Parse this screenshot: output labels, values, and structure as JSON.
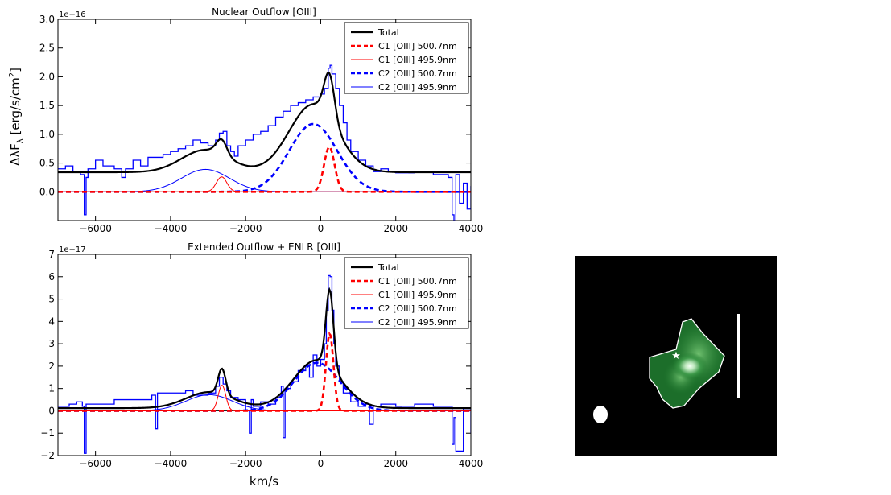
{
  "figure": {
    "ylabel": "ΔλF",
    "ylabel_sub": "λ",
    "ylabel_unit": " [erg/s/cm",
    "ylabel_sup": "2",
    "ylabel_end": "]",
    "xlabel": "km/s"
  },
  "chart_data": [
    {
      "type": "line",
      "title": "Nuclear Outflow [OIII]",
      "xlabel": "",
      "ylabel": "ΔλF_λ [erg/s/cm^2]",
      "scale_label": "1e−16",
      "xlim": [
        -7000,
        4000
      ],
      "ylim": [
        -0.5,
        3.0
      ],
      "xticks": [
        -6000,
        -4000,
        -2000,
        0,
        2000,
        4000
      ],
      "xtick_labels": [
        "−6000",
        "−4000",
        "−2000",
        "0",
        "2000",
        "4000"
      ],
      "yticks": [
        0.0,
        0.5,
        1.0,
        1.5,
        2.0,
        2.5,
        3.0
      ],
      "ytick_labels": [
        "0.0",
        "0.5",
        "1.0",
        "1.5",
        "2.0",
        "2.5",
        "3.0"
      ],
      "legend_position": "top-right",
      "baseline": 0.34,
      "components": [
        {
          "name": "C1 [OIII] 500.7nm",
          "center": 230,
          "amplitude": 0.78,
          "sigma": 140,
          "color": "#ff0000",
          "style": "dashed",
          "width": 2.6
        },
        {
          "name": "C1 [OIII] 495.9nm",
          "center": -2640,
          "amplitude": 0.26,
          "sigma": 140,
          "color": "#ff0000",
          "style": "solid",
          "width": 1
        },
        {
          "name": "C2 [OIII] 500.7nm",
          "center": -200,
          "amplitude": 1.18,
          "sigma": 640,
          "color": "#0000ff",
          "style": "dashed",
          "width": 2.6
        },
        {
          "name": "C2 [OIII] 495.9nm",
          "center": -3070,
          "amplitude": 0.39,
          "sigma": 640,
          "color": "#0000ff",
          "style": "solid",
          "width": 1
        }
      ],
      "total": {
        "name": "Total",
        "color": "#000000",
        "width": 2.2
      },
      "data_spectrum": {
        "color": "#0000ff",
        "x": [
          -7000,
          -6800,
          -6600,
          -6400,
          -6300,
          -6250,
          -6200,
          -6000,
          -5800,
          -5500,
          -5300,
          -5200,
          -5000,
          -4800,
          -4600,
          -4400,
          -4200,
          -4000,
          -3800,
          -3600,
          -3400,
          -3200,
          -3000,
          -2800,
          -2700,
          -2600,
          -2500,
          -2400,
          -2300,
          -2200,
          -2000,
          -1800,
          -1600,
          -1400,
          -1200,
          -1000,
          -800,
          -600,
          -400,
          -200,
          0,
          100,
          200,
          250,
          300,
          400,
          500,
          600,
          700,
          800,
          1000,
          1200,
          1400,
          1600,
          1800,
          2000,
          2500,
          3000,
          3400,
          3500,
          3550,
          3600,
          3700,
          3800,
          3900,
          4000
        ],
        "y": [
          0.4,
          0.45,
          0.35,
          0.3,
          -0.4,
          0.25,
          0.4,
          0.55,
          0.45,
          0.4,
          0.25,
          0.4,
          0.55,
          0.45,
          0.6,
          0.6,
          0.65,
          0.7,
          0.75,
          0.8,
          0.9,
          0.85,
          0.8,
          0.9,
          1.02,
          1.05,
          0.8,
          0.7,
          0.62,
          0.8,
          0.9,
          1.0,
          1.05,
          1.15,
          1.3,
          1.4,
          1.5,
          1.55,
          1.6,
          1.65,
          1.7,
          1.8,
          2.15,
          2.2,
          2.05,
          1.8,
          1.5,
          1.2,
          0.9,
          0.7,
          0.55,
          0.45,
          0.35,
          0.4,
          0.35,
          0.33,
          0.35,
          0.3,
          0.25,
          -0.4,
          -0.6,
          0.3,
          -0.2,
          0.15,
          -0.3,
          0.1
        ]
      }
    },
    {
      "type": "line",
      "title": "Extended Outflow + ENLR [OIII]",
      "xlabel": "km/s",
      "ylabel": "ΔλF_λ [erg/s/cm^2]",
      "scale_label": "1e−17",
      "xlim": [
        -7000,
        4000
      ],
      "ylim": [
        -2,
        7
      ],
      "xticks": [
        -6000,
        -4000,
        -2000,
        0,
        2000,
        4000
      ],
      "xtick_labels": [
        "−6000",
        "−4000",
        "−2000",
        "0",
        "2000",
        "4000"
      ],
      "yticks": [
        -2,
        -1,
        0,
        1,
        2,
        3,
        4,
        5,
        6,
        7
      ],
      "ytick_labels": [
        "−2",
        "−1",
        "0",
        "1",
        "2",
        "3",
        "4",
        "5",
        "6",
        "7"
      ],
      "legend_position": "top-right",
      "baseline": 0.12,
      "components": [
        {
          "name": "C1 [OIII] 500.7nm",
          "center": 240,
          "amplitude": 3.45,
          "sigma": 100,
          "color": "#ff0000",
          "style": "dashed",
          "width": 2.6
        },
        {
          "name": "C1 [OIII] 495.9nm",
          "center": -2630,
          "amplitude": 1.15,
          "sigma": 100,
          "color": "#ff0000",
          "style": "solid",
          "width": 1
        },
        {
          "name": "C2 [OIII] 500.7nm",
          "center": -100,
          "amplitude": 2.15,
          "sigma": 620,
          "color": "#0000ff",
          "style": "dashed",
          "width": 2.6
        },
        {
          "name": "C2 [OIII] 495.9nm",
          "center": -2970,
          "amplitude": 0.72,
          "sigma": 620,
          "color": "#0000ff",
          "style": "solid",
          "width": 1
        }
      ],
      "total": {
        "name": "Total",
        "color": "#000000",
        "width": 2.2
      },
      "data_spectrum": {
        "color": "#0000ff",
        "x": [
          -7000,
          -6700,
          -6500,
          -6350,
          -6300,
          -6250,
          -6000,
          -5500,
          -5000,
          -4500,
          -4400,
          -4350,
          -4000,
          -3600,
          -3400,
          -3000,
          -2800,
          -2700,
          -2600,
          -2500,
          -2400,
          -2200,
          -2000,
          -1900,
          -1850,
          -1800,
          -1600,
          -1400,
          -1200,
          -1050,
          -1000,
          -950,
          -800,
          -600,
          -400,
          -300,
          -200,
          -100,
          0,
          100,
          150,
          200,
          250,
          300,
          350,
          400,
          500,
          600,
          800,
          1000,
          1200,
          1300,
          1400,
          1600,
          2000,
          2500,
          3000,
          3400,
          3500,
          3550,
          3600,
          3800,
          4000
        ],
        "y": [
          0.2,
          0.3,
          0.4,
          0.2,
          -1.9,
          0.3,
          0.3,
          0.5,
          0.5,
          0.7,
          -0.8,
          0.8,
          0.8,
          0.9,
          0.7,
          0.8,
          1.1,
          1.5,
          1.2,
          0.9,
          0.6,
          0.5,
          0.0,
          -1.0,
          0.5,
          0.2,
          0.4,
          0.3,
          0.6,
          1.1,
          -1.2,
          1.0,
          1.3,
          1.8,
          2.0,
          1.5,
          2.5,
          2.0,
          2.3,
          3.0,
          4.5,
          6.05,
          6.0,
          4.5,
          3.0,
          2.0,
          1.3,
          0.8,
          0.4,
          0.2,
          0.3,
          -0.6,
          0.2,
          0.3,
          0.2,
          0.3,
          0.2,
          0.2,
          -1.5,
          -0.3,
          -1.8,
          0.1,
          -1.0
        ]
      }
    }
  ],
  "image_panel": {
    "background": "#000000",
    "emission_color": "#1f7a2e",
    "contour_color": "#ffffff",
    "marker": "star",
    "beam_color": "#ffffff",
    "scalebar_color": "#ffffff"
  }
}
